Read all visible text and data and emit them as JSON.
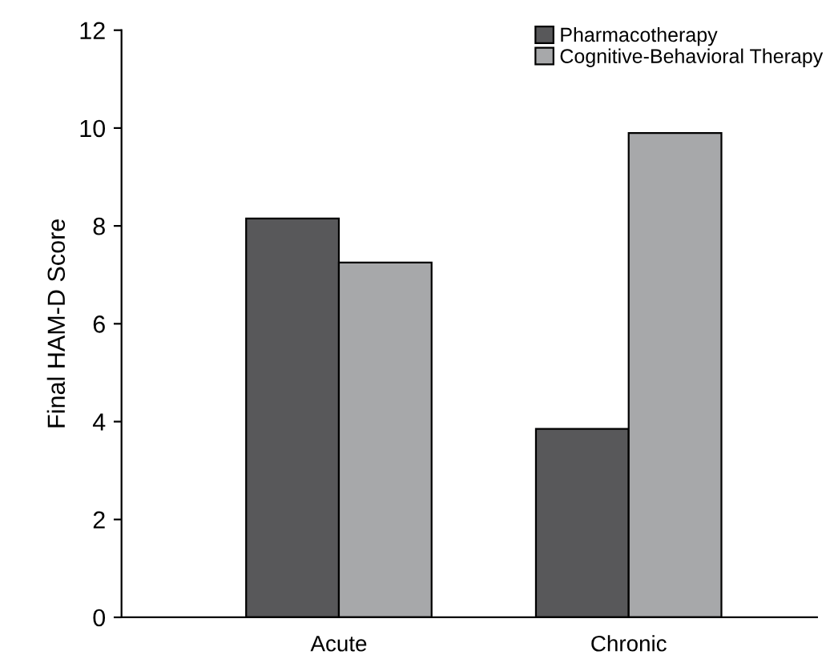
{
  "chart_data": {
    "type": "bar",
    "ylabel": "Final HAM-D Score",
    "categories": [
      "Acute",
      "Chronic"
    ],
    "series": [
      {
        "name": "Pharmacotherapy",
        "color": "#58585a",
        "values": [
          8.15,
          3.85
        ]
      },
      {
        "name": "Cognitive-Behavioral Therapy",
        "color": "#a7a8aa",
        "values": [
          7.25,
          9.9
        ]
      }
    ],
    "ylim": [
      0,
      12
    ],
    "yticks": [
      0,
      2,
      4,
      6,
      8,
      10,
      12
    ],
    "grid": false,
    "legend": "top right"
  }
}
